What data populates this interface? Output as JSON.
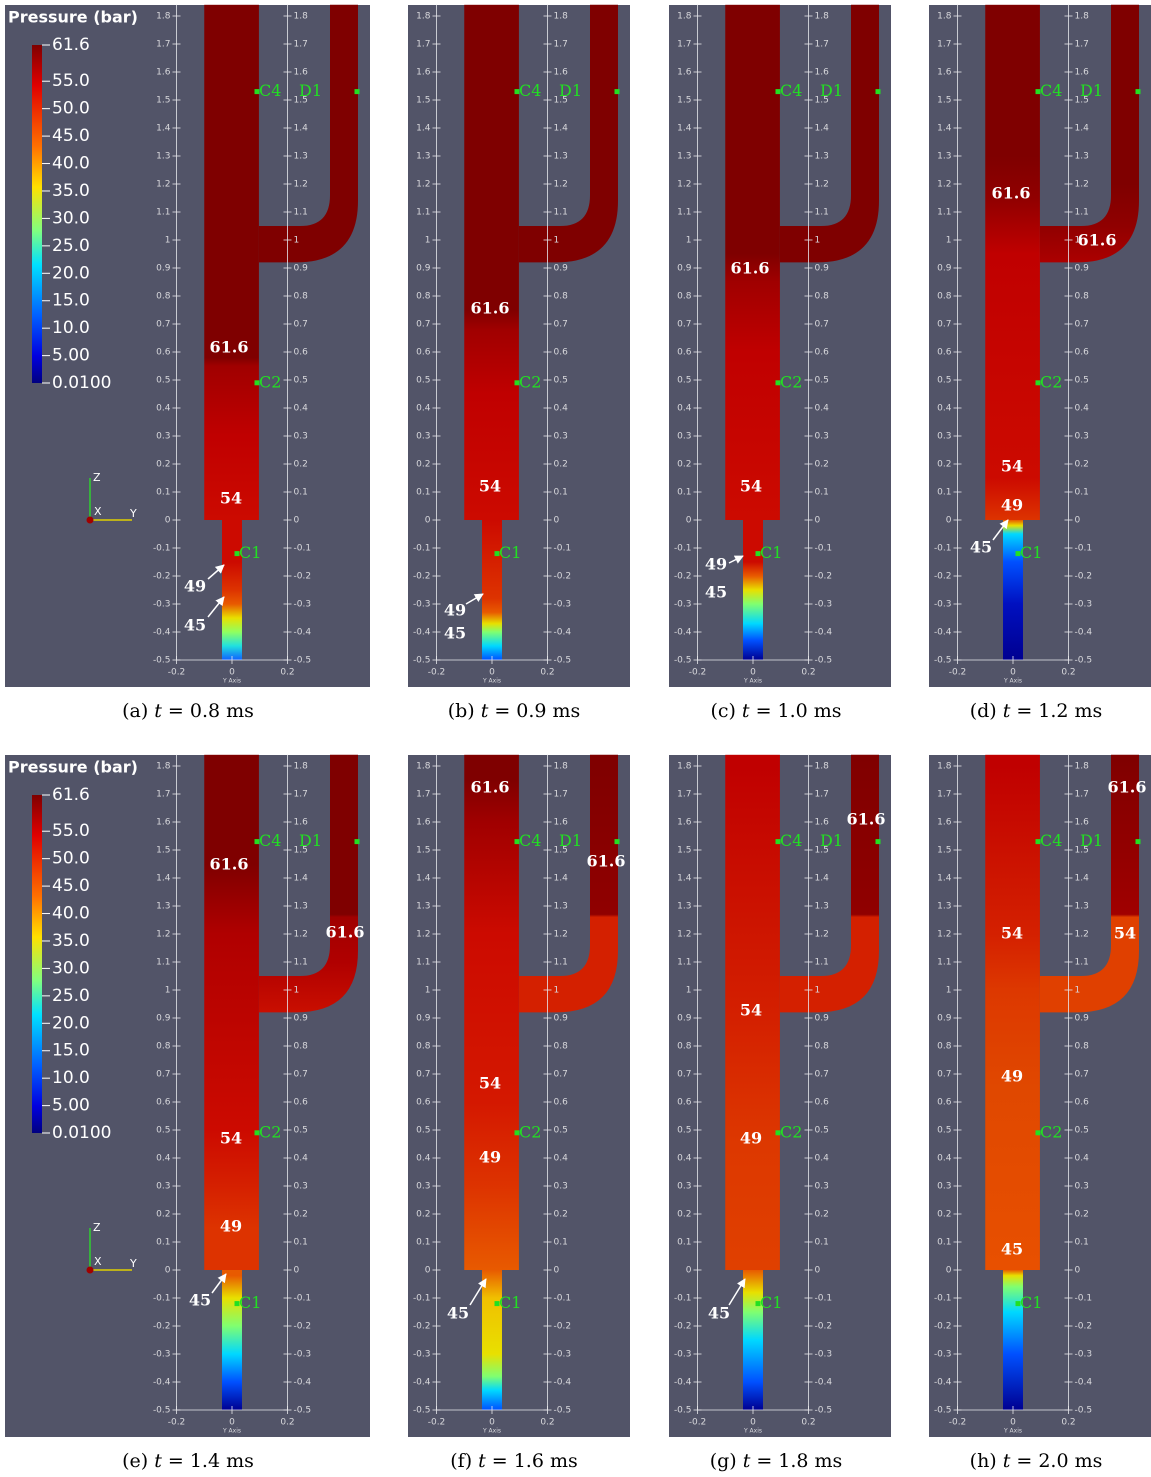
{
  "colorbar": {
    "title": "Pressure (bar)",
    "ticks": [
      61.6,
      {
        "value": 55,
        "label": "55.0"
      },
      {
        "value": 50,
        "label": "50.0"
      },
      {
        "value": 45,
        "label": "45.0"
      },
      {
        "value": 40,
        "label": "40.0"
      },
      {
        "value": 35,
        "label": "35.0"
      },
      {
        "value": 30,
        "label": "30.0"
      },
      {
        "value": 25,
        "label": "25.0"
      },
      {
        "value": 20,
        "label": "20.0"
      },
      {
        "value": 15,
        "label": "15.0"
      },
      {
        "value": 10,
        "label": "10.0"
      },
      {
        "value": 5,
        "label": "5.00"
      },
      {
        "value": 0.01,
        "label": "0.0100"
      }
    ]
  },
  "axes": {
    "zticks": [
      1.8,
      1.7,
      1.6,
      1.5,
      1.4,
      1.3,
      1.2,
      1.1,
      1,
      0.9,
      0.8,
      0.7,
      0.6,
      0.5,
      0.4,
      0.3,
      0.2,
      0.1,
      0,
      -0.1,
      -0.2,
      -0.3,
      -0.4,
      -0.5
    ],
    "yticks": [
      -0.2,
      0,
      0.2
    ],
    "ylabel": "Y Axis",
    "triad": [
      "Z",
      "X",
      "Y"
    ]
  },
  "probes": [
    "C1",
    "C2",
    "C4",
    "D1"
  ],
  "panels": [
    {
      "tag": "(a)",
      "symbol": "t",
      "caption": "= 0.8 ms",
      "contours": [
        "61.6",
        "54",
        "49",
        "45"
      ]
    },
    {
      "tag": "(b)",
      "symbol": "t",
      "caption": "= 0.9 ms",
      "contours": [
        "61.6",
        "54",
        "49",
        "45"
      ]
    },
    {
      "tag": "(c)",
      "symbol": "t",
      "caption": "= 1.0 ms",
      "contours": [
        "61.6",
        "54",
        "49",
        "45"
      ]
    },
    {
      "tag": "(d)",
      "symbol": "t",
      "caption": "= 1.2 ms",
      "contours": [
        "61.6",
        "61.6",
        "54",
        "49",
        "45"
      ]
    },
    {
      "tag": "(e)",
      "symbol": "t",
      "caption": "= 1.4 ms",
      "contours": [
        "61.6",
        "61.6",
        "54",
        "49",
        "45"
      ]
    },
    {
      "tag": "(f)",
      "symbol": "t",
      "caption": "= 1.6 ms",
      "contours": [
        "61.6",
        "61.6",
        "54",
        "49",
        "45"
      ]
    },
    {
      "tag": "(g)",
      "symbol": "t",
      "caption": "= 1.8 ms",
      "contours": [
        "61.6",
        "54",
        "49",
        "45"
      ]
    },
    {
      "tag": "(h)",
      "symbol": "t",
      "caption": "= 2.0 ms",
      "contours": [
        "61.6",
        "54",
        "54",
        "49",
        "45"
      ]
    }
  ]
}
